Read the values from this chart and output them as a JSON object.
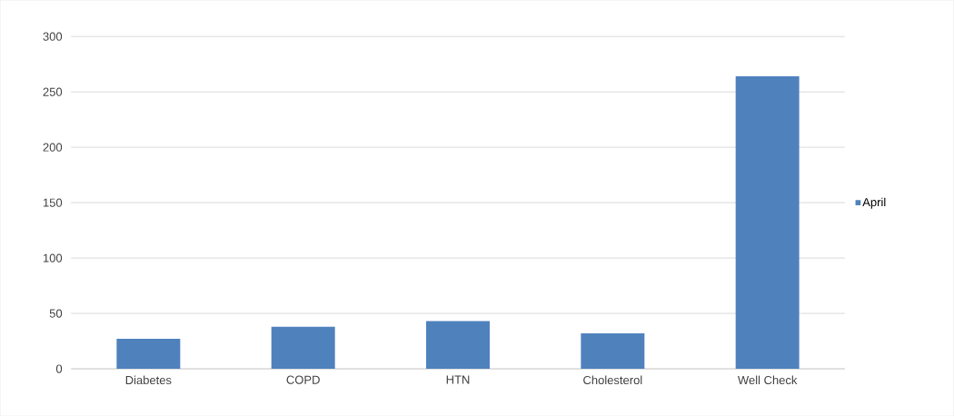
{
  "chart_data": {
    "type": "bar",
    "categories": [
      "Diabetes",
      "COPD",
      "HTN",
      "Cholesterol",
      "Well Check"
    ],
    "series": [
      {
        "name": "April",
        "color": "#4f81bd",
        "values": [
          27,
          38,
          43,
          32,
          264
        ]
      }
    ],
    "ylim": [
      0,
      300
    ],
    "yticks": [
      0,
      50,
      100,
      150,
      200,
      250,
      300
    ],
    "grid": "y",
    "legend": "right"
  }
}
